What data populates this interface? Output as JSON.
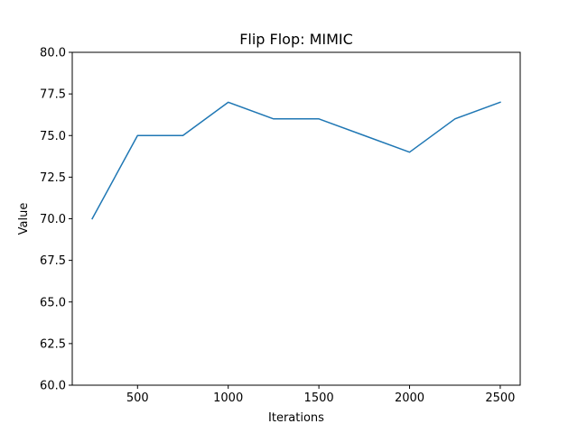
{
  "chart_data": {
    "type": "line",
    "title": "Flip Flop: MIMIC",
    "xlabel": "Iterations",
    "ylabel": "Value",
    "xlim": [
      140,
      2610
    ],
    "ylim": [
      60.0,
      80.0
    ],
    "x_ticks": [
      {
        "value": 500,
        "label": "500"
      },
      {
        "value": 1000,
        "label": "1000"
      },
      {
        "value": 1500,
        "label": "1500"
      },
      {
        "value": 2000,
        "label": "2000"
      },
      {
        "value": 2500,
        "label": "2500"
      }
    ],
    "y_ticks": [
      {
        "value": 60.0,
        "label": "60.0"
      },
      {
        "value": 62.5,
        "label": "62.5"
      },
      {
        "value": 65.0,
        "label": "65.0"
      },
      {
        "value": 67.5,
        "label": "67.5"
      },
      {
        "value": 70.0,
        "label": "70.0"
      },
      {
        "value": 72.5,
        "label": "72.5"
      },
      {
        "value": 75.0,
        "label": "75.0"
      },
      {
        "value": 77.5,
        "label": "77.5"
      },
      {
        "value": 80.0,
        "label": "80.0"
      }
    ],
    "grid": false,
    "series": [
      {
        "color": "#1f77b4",
        "x": [
          250,
          500,
          750,
          1000,
          1250,
          1500,
          1750,
          2000,
          2250,
          2500
        ],
        "y": [
          70,
          75,
          75,
          77,
          76,
          76,
          75,
          74,
          76,
          77
        ]
      }
    ]
  }
}
